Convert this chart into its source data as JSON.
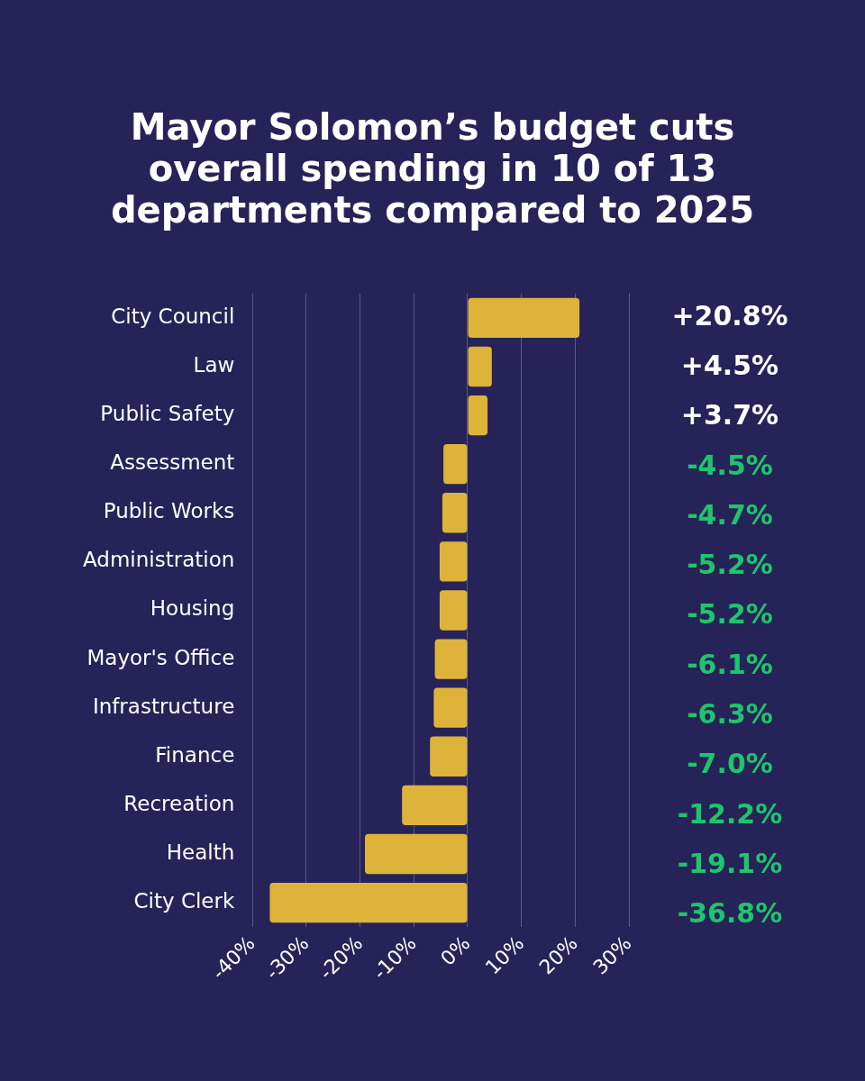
{
  "chart_data": {
    "type": "bar",
    "orientation": "horizontal",
    "title": "Mayor Solomon’s budget cuts overall spending in 10 of 13 departments compared to 2025",
    "categories": [
      "City Council",
      "Law",
      "Public Safety",
      "Assessment",
      "Public Works",
      "Administration",
      "Housing",
      "Mayor's Office",
      "Infrastructure",
      "Finance",
      "Recreation",
      "Health",
      "City Clerk"
    ],
    "values": [
      20.8,
      4.5,
      3.7,
      -4.5,
      -4.7,
      -5.2,
      -5.2,
      -6.1,
      -6.3,
      -7.0,
      -12.2,
      -19.1,
      -36.8
    ],
    "value_labels": [
      "+20.8%",
      "+4.5%",
      "+3.7%",
      "-4.5%",
      "-4.7%",
      "-5.2%",
      "-5.2%",
      "-6.1%",
      "-6.3%",
      "-7.0%",
      "-12.2%",
      "-19.1%",
      "-36.8%"
    ],
    "color": "#deb33a",
    "xlim": [
      -40,
      30
    ],
    "xticks": [
      {
        "value": -40,
        "label": "-40%"
      },
      {
        "value": -30,
        "label": "-30%"
      },
      {
        "value": -20,
        "label": "-20%"
      },
      {
        "value": -10,
        "label": "-10%"
      },
      {
        "value": 0,
        "label": "0%"
      },
      {
        "value": 10,
        "label": "10%"
      },
      {
        "value": 20,
        "label": "20%"
      },
      {
        "value": 30,
        "label": "30%"
      }
    ],
    "grid": "x",
    "legend": false
  }
}
